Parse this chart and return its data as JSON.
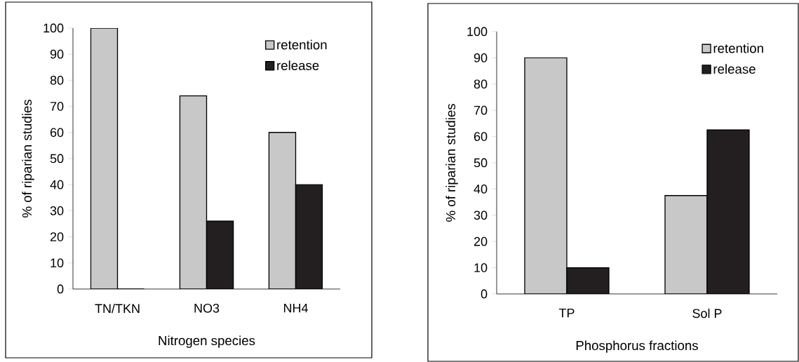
{
  "chart_data": [
    {
      "type": "bar",
      "xlabel": "Nitrogen species",
      "ylabel": "% of riparian studies",
      "categories": [
        "TN/TKN",
        "NO3",
        "NH4"
      ],
      "series": [
        {
          "name": "retention",
          "color": "#c8c8c8",
          "values": [
            100,
            74,
            60
          ]
        },
        {
          "name": "release",
          "color": "#231f20",
          "values": [
            0,
            26,
            40
          ]
        }
      ],
      "ylim": [
        0,
        100
      ],
      "yticks": [
        0,
        10,
        20,
        30,
        40,
        50,
        60,
        70,
        80,
        90,
        100
      ],
      "grid": false,
      "legend": "top right"
    },
    {
      "type": "bar",
      "xlabel": "Phosphorus fractions",
      "ylabel": "% of riparian studies",
      "categories": [
        "TP",
        "Sol P"
      ],
      "series": [
        {
          "name": "retention",
          "color": "#c8c8c8",
          "values": [
            90,
            37.5
          ]
        },
        {
          "name": "release",
          "color": "#231f20",
          "values": [
            10,
            62.5
          ]
        }
      ],
      "ylim": [
        0,
        100
      ],
      "yticks": [
        0,
        10,
        20,
        30,
        40,
        50,
        60,
        70,
        80,
        90,
        100
      ],
      "grid": false,
      "legend": "top right"
    }
  ]
}
